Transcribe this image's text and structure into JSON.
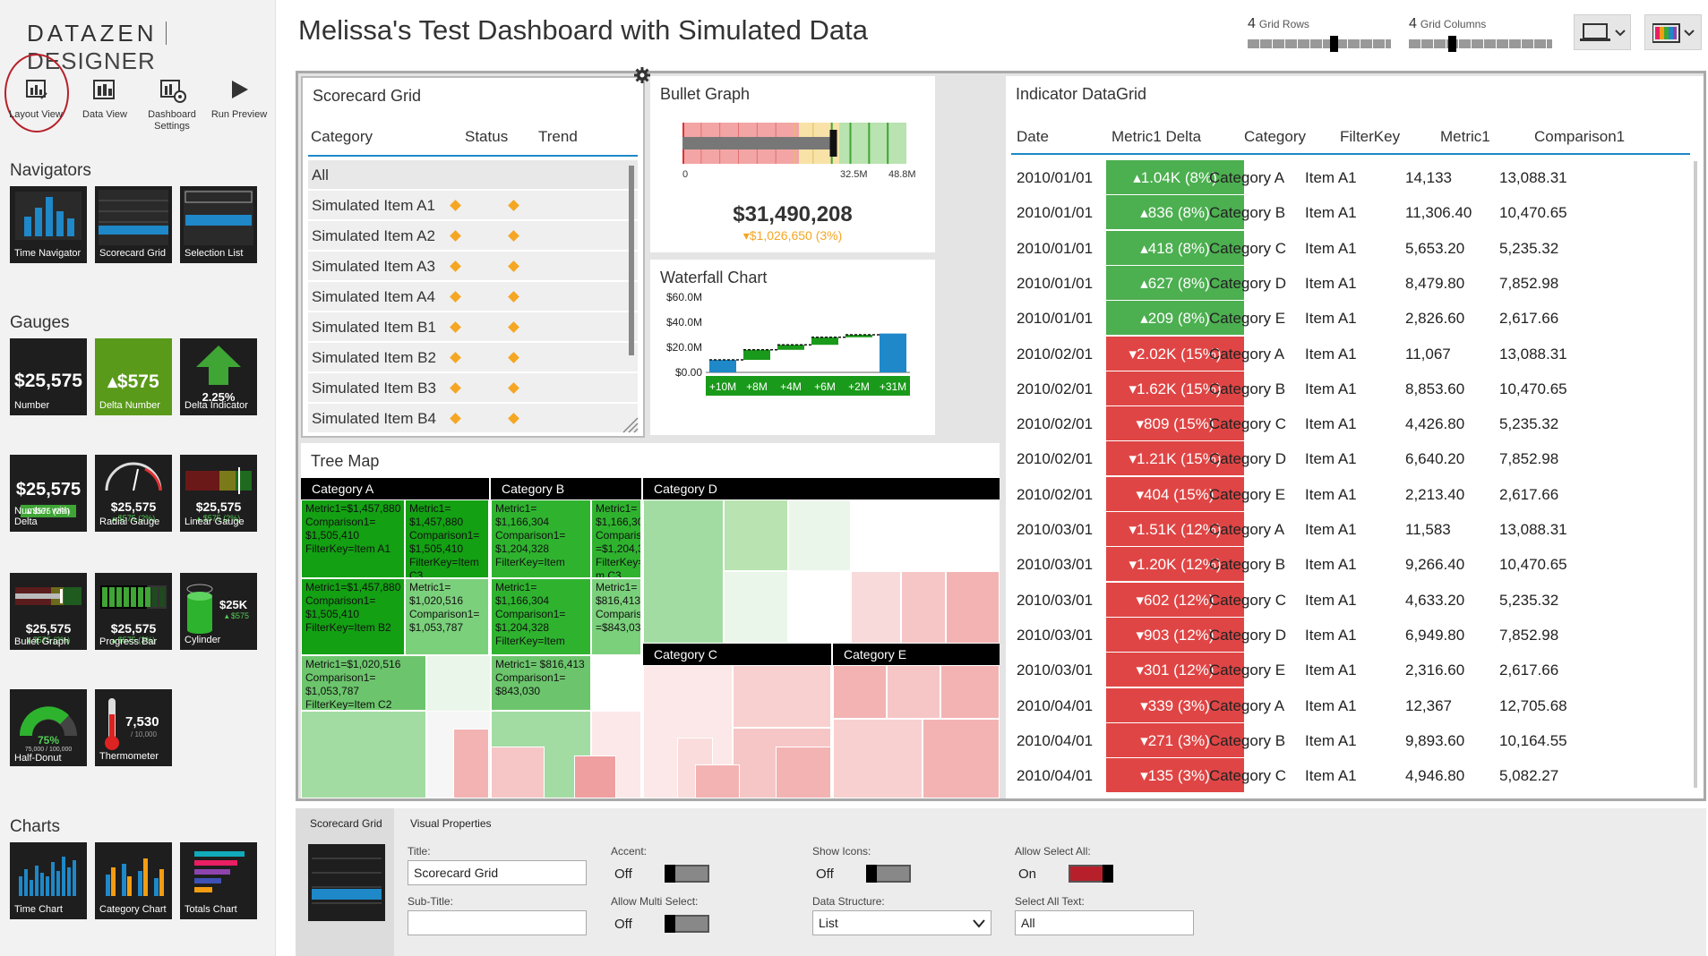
{
  "app": {
    "brand_left": "DATAZEN",
    "brand_right": "DESIGNER"
  },
  "toolbar": [
    {
      "label": "Layout View",
      "icon": "layout-view-icon"
    },
    {
      "label": "Data View",
      "icon": "data-view-icon"
    },
    {
      "label": "Dashboard Settings",
      "icon": "dashboard-settings-icon"
    },
    {
      "label": "Run Preview",
      "icon": "play-icon"
    }
  ],
  "sidebar": {
    "navigators": {
      "title": "Navigators",
      "items": [
        "Time Navigator",
        "Scorecard Grid",
        "Selection List"
      ]
    },
    "gauges": {
      "title": "Gauges",
      "items": [
        {
          "label": "Number",
          "value": "$25,575"
        },
        {
          "label": "Delta Number",
          "value": "▴$575"
        },
        {
          "label": "Delta Indicator",
          "value": "2.25%"
        },
        {
          "label": "Number with Delta",
          "value": "$25,575",
          "sub": "▴ $575 (2%)"
        },
        {
          "label": "Radial Gauge",
          "value": "$25,575",
          "sub": "▴ $575 (2%)"
        },
        {
          "label": "Linear Gauge",
          "value": "$25,575",
          "sub": "▴ $575 (2%)"
        },
        {
          "label": "Bullet Graph",
          "value": "$25,575",
          "sub": "▴ $575 (2%)"
        },
        {
          "label": "Progress Bar",
          "value": "$25,575",
          "sub": "▴ $575 (2%)"
        },
        {
          "label": "Cylinder",
          "value": "$25K",
          "sub": "▴ $575"
        },
        {
          "label": "Half-Donut",
          "value": "75%",
          "sub": "75,000 / 100,000"
        },
        {
          "label": "Thermometer",
          "value": "7,530",
          "sub": "/ 10,000"
        }
      ]
    },
    "charts": {
      "title": "Charts",
      "items": [
        "Time Chart",
        "Category Chart",
        "Totals Chart"
      ]
    }
  },
  "header": {
    "title": "Melissa's Test Dashboard with Simulated Data",
    "grid_rows": {
      "value": "4",
      "label": "Grid Rows"
    },
    "grid_columns": {
      "value": "4",
      "label": "Grid Columns"
    }
  },
  "scorecard": {
    "title": "Scorecard Grid",
    "columns": [
      "Category",
      "Status",
      "Trend"
    ],
    "rows": [
      "All",
      "Simulated Item A1",
      "Simulated Item A2",
      "Simulated Item A3",
      "Simulated Item A4",
      "Simulated Item B1",
      "Simulated Item B2",
      "Simulated Item B3",
      "Simulated Item B4"
    ]
  },
  "bullet": {
    "title": "Bullet Graph",
    "ticks": [
      "0",
      "32.5M",
      "48.8M"
    ],
    "value": "$31,490,208",
    "delta": "▾$1,026,650 (3%)",
    "progress": 0.658
  },
  "waterfall": {
    "title": "Waterfall Chart",
    "yticks": [
      "$60.0M",
      "$40.0M",
      "$20.0M",
      "$0.00"
    ],
    "labels": [
      "+10M",
      "+8M",
      "+4M",
      "+6M",
      "+2M",
      "+31M"
    ],
    "values": [
      10,
      8,
      4,
      6,
      2,
      31
    ]
  },
  "treemap": {
    "title": "Tree Map",
    "categories": [
      "Category A",
      "Category B",
      "Category D",
      "Category C",
      "Category E"
    ],
    "cells": [
      {
        "text": "Metric1=$1,457,880 Comparison1= $1,505,410 FilterKey=Item A1"
      },
      {
        "text": "Metric1= $1,457,880 Comparison1= $1,505,410 FilterKey=Item C3"
      },
      {
        "text": "Metric1= $1,166,304 Comparison1= $1,204,328 FilterKey=Item"
      },
      {
        "text": "Metric1= $1,166,304 Comparison1 =$1,204,328 FilterKey=Ite m C3"
      },
      {
        "text": "Metric1=$1,457,880 Comparison1= $1,505,410 FilterKey=Item B2"
      },
      {
        "text": "Metric1= $1,020,516 Comparison1= $1,053,787"
      },
      {
        "text": "Metric1= $1,166,304 Comparison1= $1,204,328 FilterKey=Item"
      },
      {
        "text": "Metric1= $816,413 Comparison1 =$843,030"
      },
      {
        "text": "Metric1=$1,020,516 Comparison1= $1,053,787 FilterKey=Item C2"
      },
      {
        "text": "Metric1= $816,413 Comparison1= $843,030"
      }
    ]
  },
  "datagrid": {
    "title": "Indicator DataGrid",
    "columns": [
      "Date",
      "Metric1 Delta",
      "Category",
      "FilterKey",
      "Metric1",
      "Comparison1"
    ],
    "rows": [
      [
        "2010/01/01",
        "▴1.04K (8%)",
        "Category A",
        "Item A1",
        "14,133",
        "13,088.31",
        "up"
      ],
      [
        "2010/01/01",
        "▴836 (8%)",
        "Category B",
        "Item A1",
        "11,306.40",
        "10,470.65",
        "up"
      ],
      [
        "2010/01/01",
        "▴418 (8%)",
        "Category C",
        "Item A1",
        "5,653.20",
        "5,235.32",
        "up"
      ],
      [
        "2010/01/01",
        "▴627 (8%)",
        "Category D",
        "Item A1",
        "8,479.80",
        "7,852.98",
        "up"
      ],
      [
        "2010/01/01",
        "▴209 (8%)",
        "Category E",
        "Item A1",
        "2,826.60",
        "2,617.66",
        "up"
      ],
      [
        "2010/02/01",
        "▾2.02K (15%)",
        "Category A",
        "Item A1",
        "11,067",
        "13,088.31",
        "down"
      ],
      [
        "2010/02/01",
        "▾1.62K (15%)",
        "Category B",
        "Item A1",
        "8,853.60",
        "10,470.65",
        "down"
      ],
      [
        "2010/02/01",
        "▾809 (15%)",
        "Category C",
        "Item A1",
        "4,426.80",
        "5,235.32",
        "down"
      ],
      [
        "2010/02/01",
        "▾1.21K (15%)",
        "Category D",
        "Item A1",
        "6,640.20",
        "7,852.98",
        "down"
      ],
      [
        "2010/02/01",
        "▾404 (15%)",
        "Category E",
        "Item A1",
        "2,213.40",
        "2,617.66",
        "down"
      ],
      [
        "2010/03/01",
        "▾1.51K (12%)",
        "Category A",
        "Item A1",
        "11,583",
        "13,088.31",
        "down"
      ],
      [
        "2010/03/01",
        "▾1.20K (12%)",
        "Category B",
        "Item A1",
        "9,266.40",
        "10,470.65",
        "down"
      ],
      [
        "2010/03/01",
        "▾602 (12%)",
        "Category C",
        "Item A1",
        "4,633.20",
        "5,235.32",
        "down"
      ],
      [
        "2010/03/01",
        "▾903 (12%)",
        "Category D",
        "Item A1",
        "6,949.80",
        "7,852.98",
        "down"
      ],
      [
        "2010/03/01",
        "▾301 (12%)",
        "Category E",
        "Item A1",
        "2,316.60",
        "2,617.66",
        "down"
      ],
      [
        "2010/04/01",
        "▾339 (3%)",
        "Category A",
        "Item A1",
        "12,367",
        "12,705.68",
        "down"
      ],
      [
        "2010/04/01",
        "▾271 (3%)",
        "Category B",
        "Item A1",
        "9,893.60",
        "10,164.55",
        "down"
      ],
      [
        "2010/04/01",
        "▾135 (3%)",
        "Category C",
        "Item A1",
        "4,946.80",
        "5,082.27",
        "down"
      ]
    ]
  },
  "properties": {
    "tabs": [
      "Scorecard Grid",
      "Visual Properties"
    ],
    "title_label": "Title:",
    "title_value": "Scorecard Grid",
    "subtitle_label": "Sub-Title:",
    "subtitle_value": "",
    "accent_label": "Accent:",
    "accent_value": "Off",
    "multi_label": "Allow Multi Select:",
    "multi_value": "Off",
    "icons_label": "Show Icons:",
    "icons_value": "Off",
    "structure_label": "Data Structure:",
    "structure_value": "List",
    "selectall_label": "Allow Select All:",
    "selectall_value": "On",
    "selectalltext_label": "Select All Text:",
    "selectalltext_value": "All"
  },
  "colors": {
    "green": "#4caf50",
    "red": "#e04545",
    "dark_green": "#128a12",
    "accent_red": "#b7202a"
  }
}
